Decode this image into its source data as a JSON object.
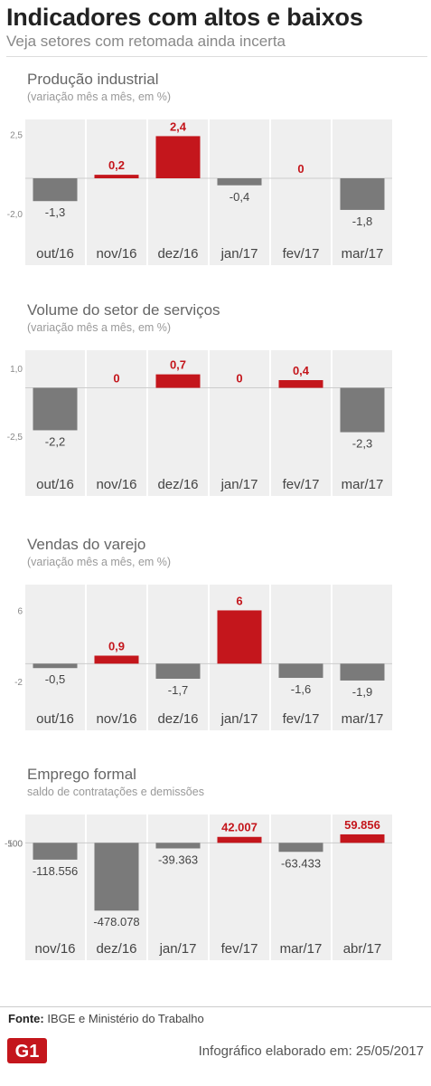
{
  "header": {
    "title": "Indicadores com altos e baixos",
    "subtitle": "Veja setores com retomada ainda incerta"
  },
  "colors": {
    "positive": "#c4161c",
    "negative": "#7a7a7a",
    "column_bg": "#efefef",
    "zero_line": "#cccccc"
  },
  "chart_data": [
    {
      "type": "bar",
      "title": "Produção industrial",
      "subtitle": "(variação mês a mês, em %)",
      "categories": [
        "out/16",
        "nov/16",
        "dez/16",
        "jan/17",
        "fev/17",
        "mar/17"
      ],
      "values": [
        -1.3,
        0.2,
        2.4,
        -0.4,
        0,
        -1.8
      ],
      "value_labels": [
        "-1,3",
        "0,2",
        "2,4",
        "-0,4",
        "0",
        "-1,8"
      ],
      "y_ticks": [
        2.5,
        -2.0
      ],
      "y_tick_labels": [
        "2,5",
        "-2,0"
      ],
      "ylim": [
        -3.35,
        3.35
      ]
    },
    {
      "type": "bar",
      "title": "Volume do setor de serviços",
      "subtitle": "(variação mês a mês, em %)",
      "categories": [
        "out/16",
        "nov/16",
        "dez/16",
        "jan/17",
        "fev/17",
        "mar/17"
      ],
      "values": [
        -2.2,
        0,
        0.7,
        0,
        0.4,
        -2.3
      ],
      "value_labels": [
        "-2,2",
        "0",
        "0,7",
        "0",
        "0,4",
        "-2,3"
      ],
      "y_ticks": [
        1.0,
        -2.5
      ],
      "y_tick_labels": [
        "1,0",
        "-2,5"
      ],
      "ylim": [
        -4.15,
        1.95
      ]
    },
    {
      "type": "bar",
      "title": "Vendas do varejo",
      "subtitle": "(variação mês a mês, em %)",
      "categories": [
        "out/16",
        "nov/16",
        "dez/16",
        "jan/17",
        "fev/17",
        "mar/17"
      ],
      "values": [
        -0.5,
        0.9,
        -1.7,
        6,
        -1.6,
        -1.9
      ],
      "value_labels": [
        "-0,5",
        "0,9",
        "-1,7",
        "6",
        "-1,6",
        "-1,9"
      ],
      "y_ticks": [
        6,
        -2
      ],
      "y_tick_labels": [
        "6",
        "-2"
      ],
      "ylim": [
        -4.35,
        8.9
      ]
    },
    {
      "type": "bar",
      "title": "Emprego formal",
      "subtitle": "saldo de contratações e demissões",
      "categories": [
        "nov/16",
        "dez/16",
        "jan/17",
        "fev/17",
        "mar/17",
        "abr/17"
      ],
      "values": [
        -118556,
        -478078,
        -39363,
        42007,
        -63433,
        59856
      ],
      "value_labels": [
        "-118.556",
        "-478.078",
        "-39.363",
        "42.007",
        "-63.433",
        "59.856"
      ],
      "y_ticks": [
        100,
        -500
      ],
      "y_tick_labels": [
        "100",
        "-500"
      ],
      "ylim": [
        -630000,
        200000
      ]
    }
  ],
  "footer": {
    "source_label": "Fonte:",
    "source_text": "IBGE e Ministério do Trabalho",
    "logo_text": "G1",
    "credit": "Infográfico elaborado em: 25/05/2017"
  }
}
